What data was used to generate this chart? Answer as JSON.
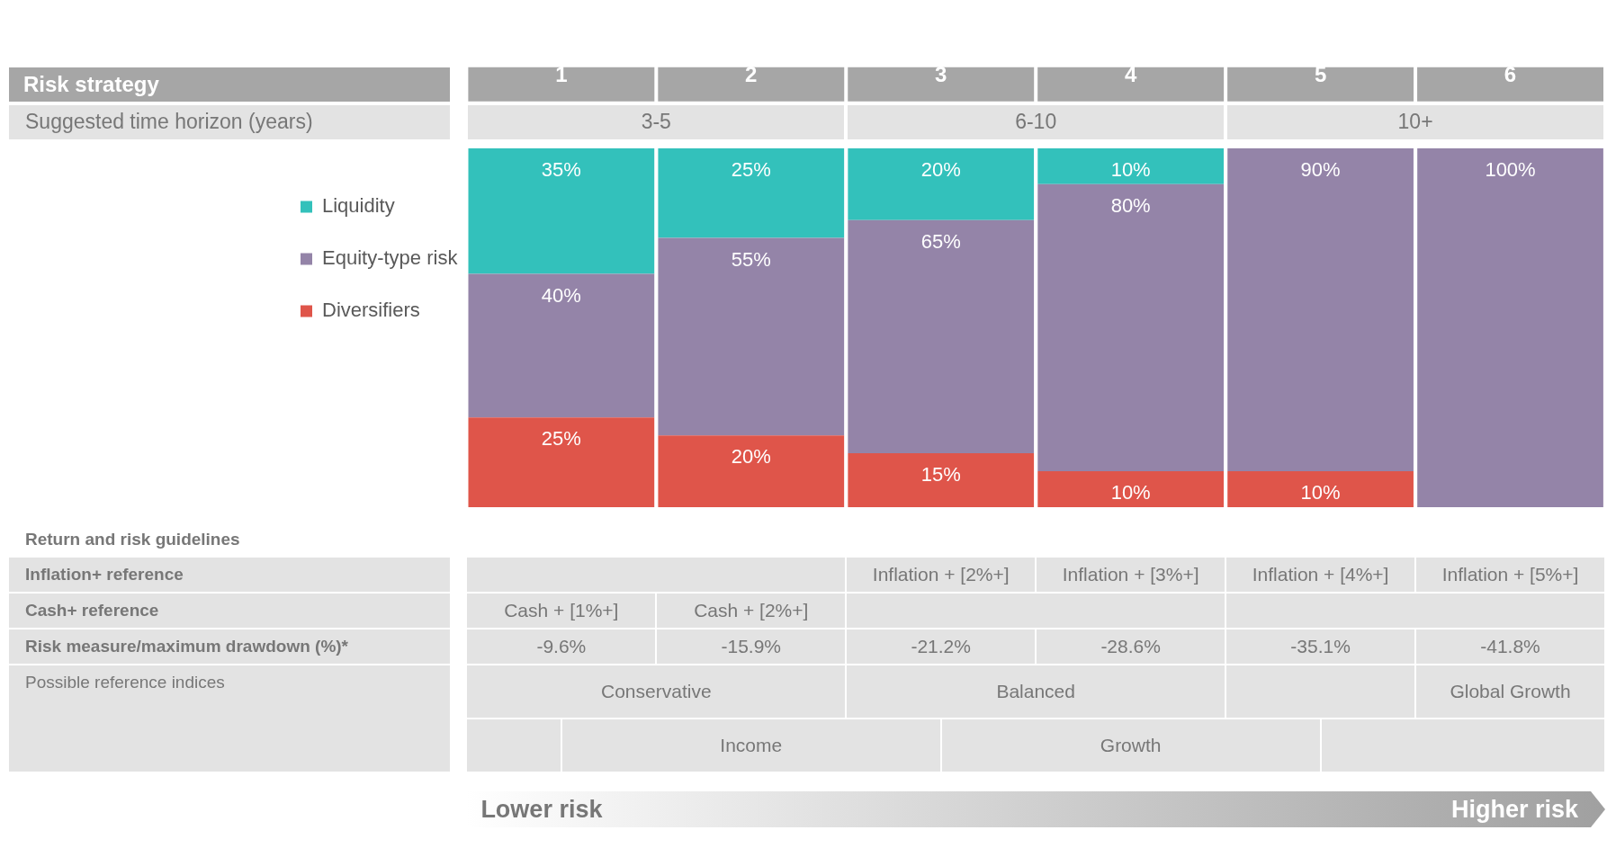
{
  "chart_data": {
    "type": "bar",
    "categories": [
      "1",
      "2",
      "3",
      "4",
      "5",
      "6"
    ],
    "stacked": true,
    "legend": "left",
    "tick_labels": "x",
    "series": [
      {
        "name": "Diversifiers",
        "color": "#df554a",
        "values": [
          25,
          20,
          15,
          10,
          10,
          null
        ],
        "value_labels": [
          "25%",
          "20%",
          "15%",
          "10%",
          "10%",
          null
        ]
      },
      {
        "name": "Equity-type risk",
        "color": "#9484a8",
        "values": [
          40,
          55,
          65,
          80,
          90,
          100
        ],
        "value_labels": [
          "40%",
          "55%",
          "65%",
          "80%",
          "90%",
          "100%"
        ]
      },
      {
        "name": "Liquidity",
        "color": "#33c1bb",
        "values": [
          35,
          25,
          20,
          10,
          null,
          null
        ],
        "value_labels": [
          "35%",
          "25%",
          "20%",
          "10%",
          null,
          null
        ]
      }
    ],
    "annotations": [
      "Suggested time horizon (years)",
      "3-5",
      "6-10",
      "10+",
      "Return and risk guidelines",
      "Inflation+ reference",
      "Inflation + [2%+]",
      "Inflation + [3%+]",
      "Inflation + [4%+]",
      "Inflation + [5%+]",
      "Cash+ reference",
      "Cash + [1%+]",
      "Cash + [2%+]",
      "Risk measure/maximum drawdown (%)*",
      "-9.6%",
      "-15.9%",
      "-21.2%",
      "-28.6%",
      "-35.1%",
      "-41.8%",
      "Possible reference indices",
      "Conservative",
      "Balanced",
      "Global Growth",
      "Income",
      "Growth",
      "Lower risk",
      "Higher risk",
      "Risk strategy"
    ]
  }
}
